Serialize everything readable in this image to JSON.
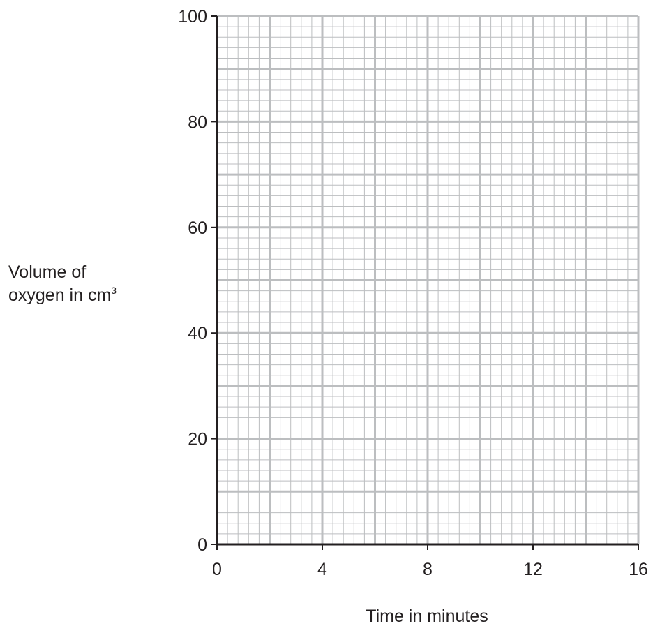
{
  "chart_data": {
    "type": "line",
    "title": "",
    "xlabel": "Time in minutes",
    "ylabel_line1": "Volume of",
    "ylabel_line2_text": "oxygen in cm",
    "ylabel_line2_superscript": "3",
    "xlim": [
      0,
      16
    ],
    "ylim": [
      0,
      100
    ],
    "x_ticks": [
      0,
      4,
      8,
      12,
      16
    ],
    "x_tick_labels": [
      "0",
      "4",
      "8",
      "12",
      "16"
    ],
    "y_ticks": [
      0,
      20,
      40,
      60,
      80,
      100
    ],
    "y_tick_labels": [
      "0",
      "20",
      "40",
      "60",
      "80",
      "100"
    ],
    "grid": true,
    "grid_major_x_step": 2,
    "grid_major_y_step": 10,
    "grid_minor_x_step": 0.4,
    "grid_minor_y_step": 2,
    "series": []
  },
  "colors": {
    "axis": "#231f20",
    "major_grid": "#bcbec0",
    "minor_grid": "#bcbec0",
    "text": "#231f20"
  }
}
